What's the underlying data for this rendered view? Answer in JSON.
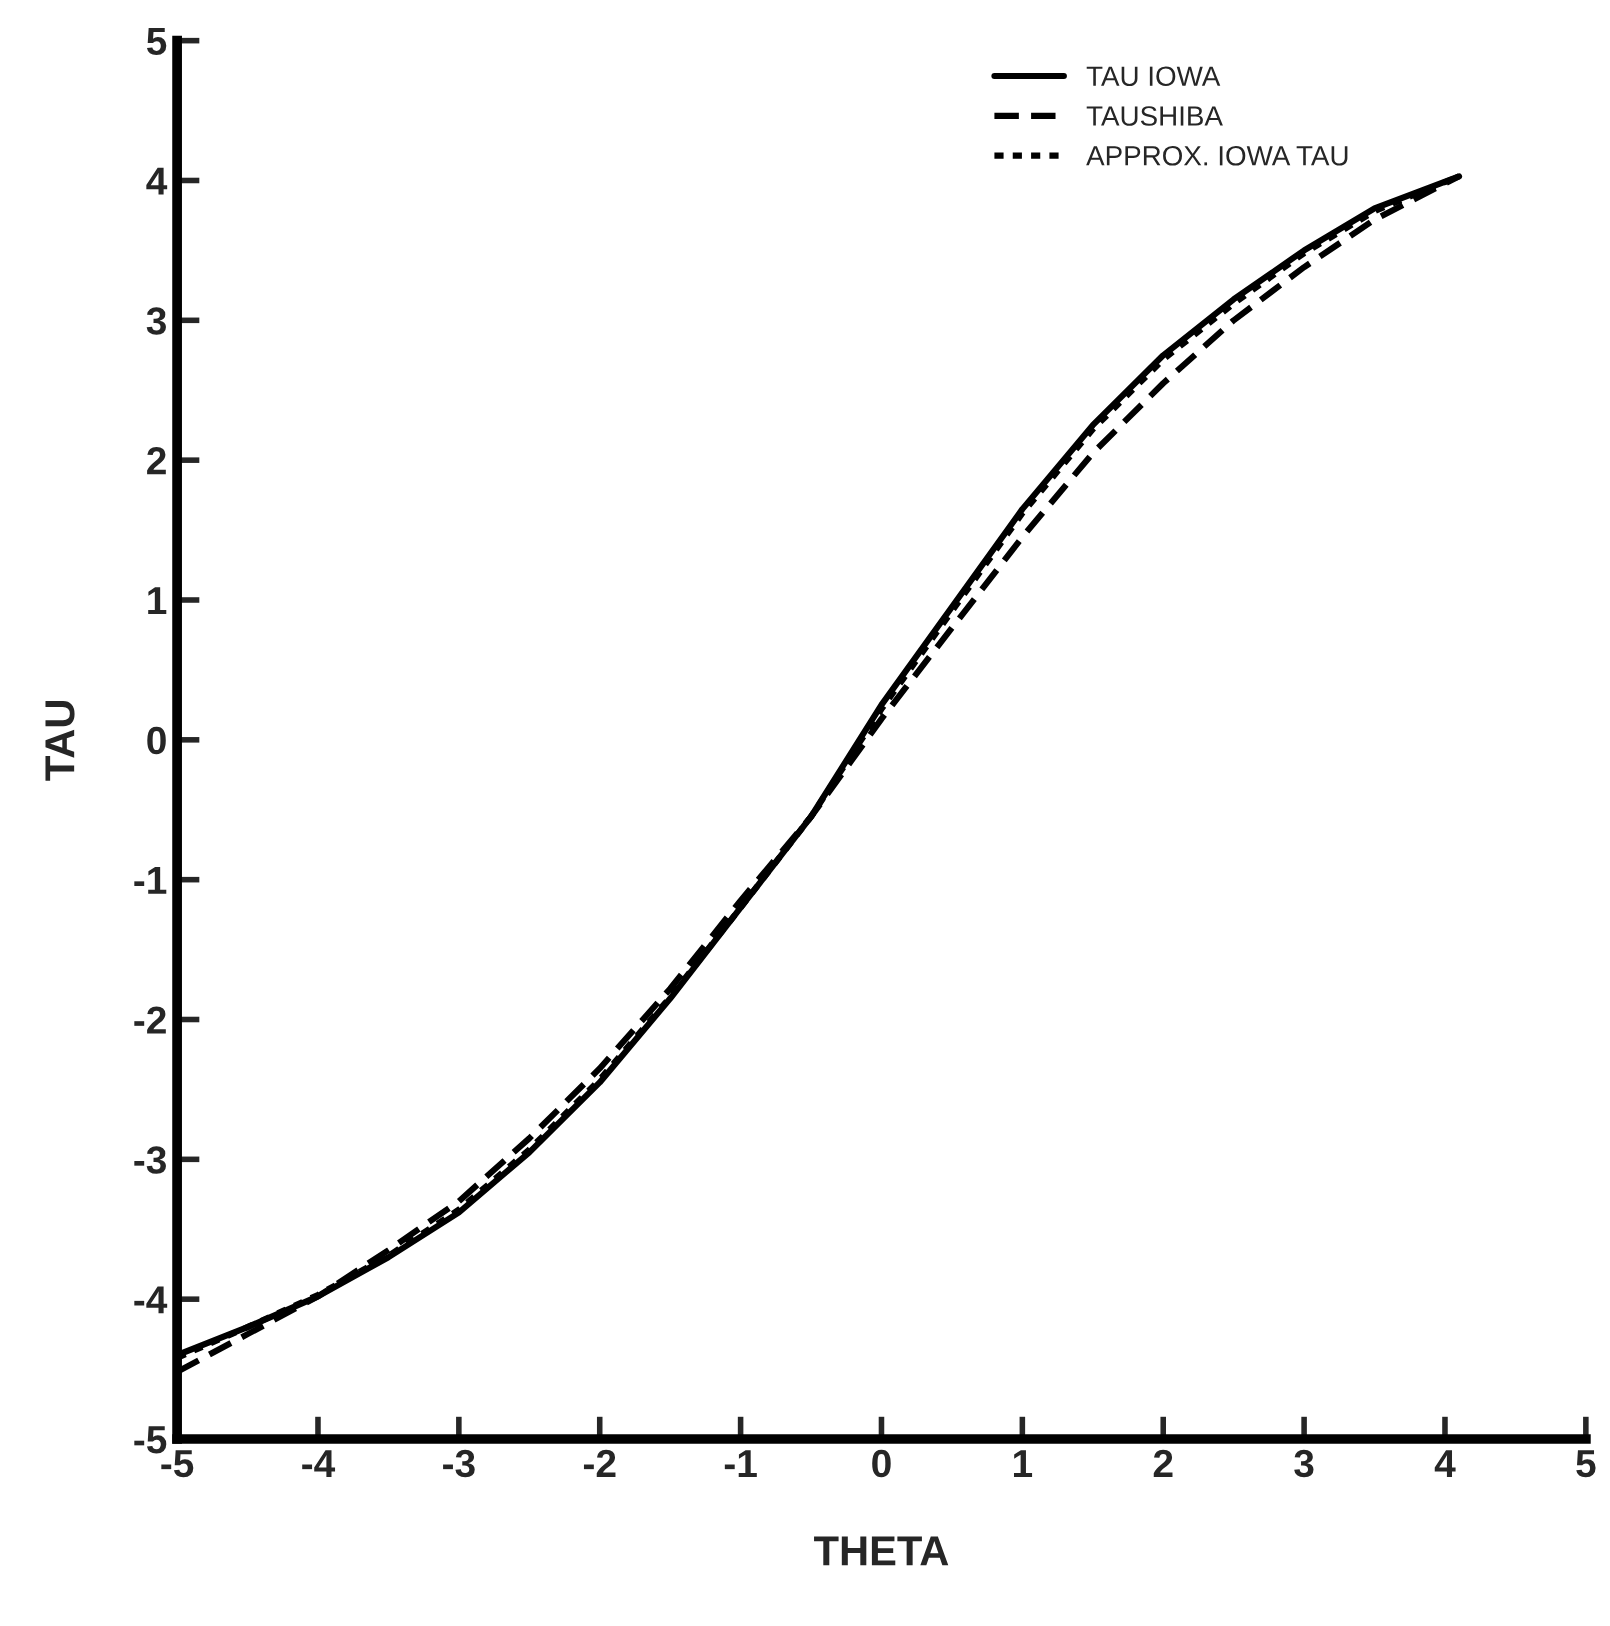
{
  "chart_data": {
    "type": "line",
    "xlabel": "THETA",
    "ylabel": "TAU",
    "x": [
      -5,
      -4.5,
      -4,
      -3.5,
      -3,
      -2.5,
      -2,
      -1.5,
      -1,
      -0.5,
      0,
      0.5,
      1,
      1.5,
      2,
      2.5,
      3,
      3.5,
      4.1
    ],
    "series": [
      {
        "name": "TAU IOWA",
        "color": "#000000",
        "line_style": "solid",
        "values": [
          -4.4,
          -4.2,
          -3.98,
          -3.7,
          -3.38,
          -2.95,
          -2.45,
          -1.85,
          -1.2,
          -0.55,
          0.25,
          0.95,
          1.65,
          2.25,
          2.75,
          3.15,
          3.5,
          3.8,
          4.03
        ]
      },
      {
        "name": "TAUSHIBA",
        "color": "#000000",
        "line_style": "dashed",
        "values": [
          -4.52,
          -4.25,
          -3.98,
          -3.65,
          -3.3,
          -2.85,
          -2.35,
          -1.78,
          -1.15,
          -0.55,
          0.15,
          0.8,
          1.45,
          2.05,
          2.55,
          3.0,
          3.38,
          3.72,
          4.03
        ]
      },
      {
        "name": "APPROX. IOWA TAU",
        "color": "#000000",
        "line_style": "dotted",
        "values": [
          -4.42,
          -4.2,
          -3.97,
          -3.69,
          -3.36,
          -2.93,
          -2.43,
          -1.84,
          -1.2,
          -0.55,
          0.22,
          0.92,
          1.62,
          2.22,
          2.72,
          3.12,
          3.48,
          3.78,
          4.03
        ]
      }
    ],
    "xlim": [
      -5,
      5
    ],
    "ylim": [
      -5,
      5
    ],
    "xticks": [
      -5,
      -4,
      -3,
      -2,
      -1,
      0,
      1,
      2,
      3,
      4,
      5
    ],
    "yticks": [
      -5,
      -4,
      -3,
      -2,
      -1,
      0,
      1,
      2,
      3,
      4,
      5
    ],
    "grid": false,
    "legend": "top right",
    "marker": "none"
  }
}
